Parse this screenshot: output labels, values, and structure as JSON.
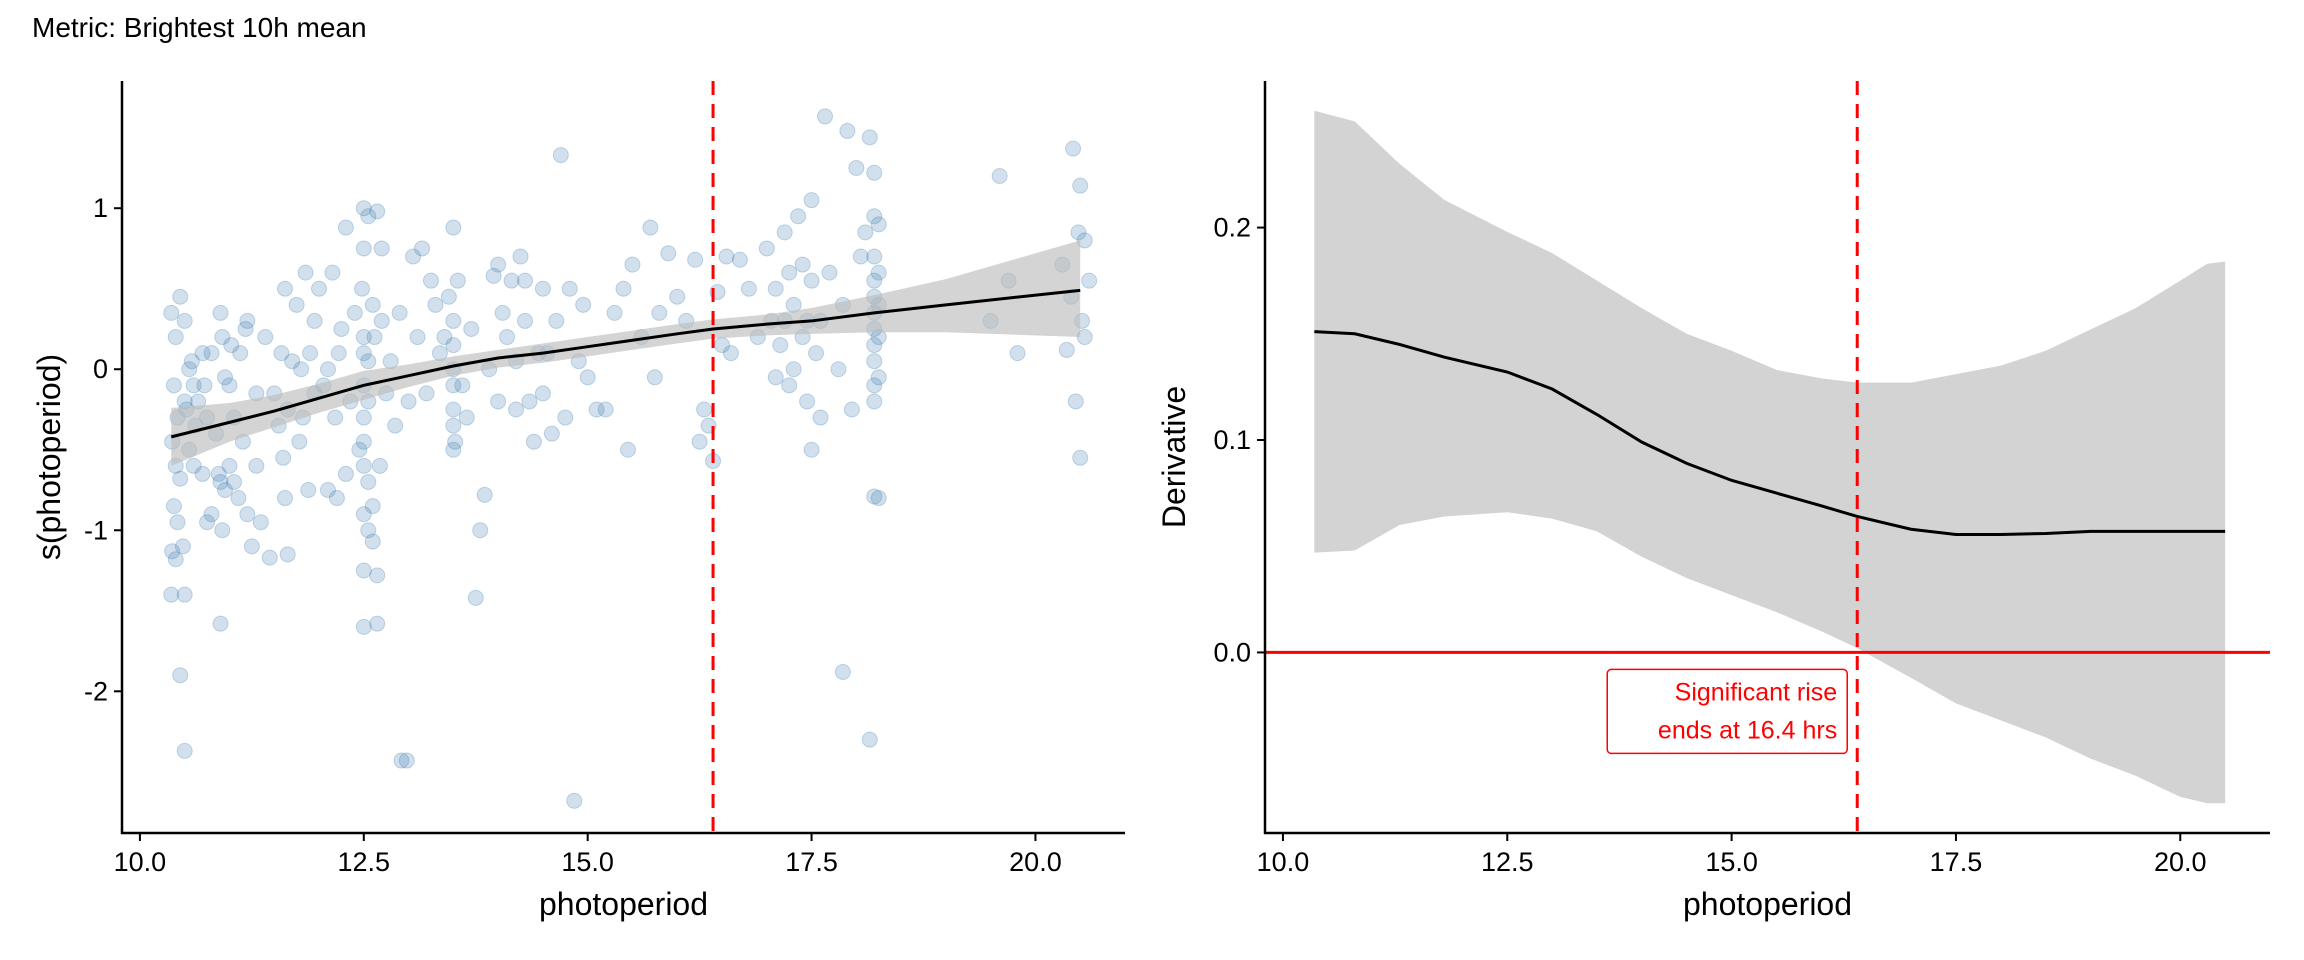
{
  "title": "Metric: Brightest 10h mean",
  "chart_data": [
    {
      "type": "scatter",
      "xlabel": "photoperiod",
      "ylabel": "s(photoperiod)",
      "xlim": [
        9.8,
        21.0
      ],
      "ylim": [
        -2.88,
        1.79
      ],
      "xticks": [
        "10.0",
        "12.5",
        "15.0",
        "17.5",
        "20.0"
      ],
      "xtick_values": [
        10,
        12.5,
        15,
        17.5,
        20
      ],
      "yticks": [
        "1",
        "0",
        "-1",
        "-2"
      ],
      "ytick_values": [
        1,
        0,
        -1,
        -2
      ],
      "vline": 16.4,
      "point_color": "#4682B4",
      "vline_color": "#FF0000",
      "smooth": {
        "x": [
          10.35,
          11.0,
          11.5,
          12.0,
          12.5,
          13.0,
          13.5,
          14.0,
          14.5,
          15.0,
          15.5,
          16.0,
          16.4,
          17.0,
          17.5,
          18.2,
          19.0,
          20.5
        ],
        "y": [
          -0.42,
          -0.33,
          -0.26,
          -0.18,
          -0.1,
          -0.04,
          0.02,
          0.07,
          0.1,
          0.14,
          0.18,
          0.22,
          0.25,
          0.28,
          0.3,
          0.35,
          0.4,
          0.49
        ],
        "lower": [
          -0.6,
          -0.45,
          -0.36,
          -0.27,
          -0.19,
          -0.11,
          -0.04,
          0.01,
          0.04,
          0.08,
          0.12,
          0.16,
          0.19,
          0.21,
          0.22,
          0.23,
          0.23,
          0.2
        ],
        "upper": [
          -0.24,
          -0.21,
          -0.16,
          -0.09,
          -0.01,
          0.03,
          0.08,
          0.12,
          0.16,
          0.2,
          0.24,
          0.28,
          0.31,
          0.34,
          0.38,
          0.46,
          0.56,
          0.8
        ]
      },
      "points": [
        [
          10.35,
          0.35
        ],
        [
          10.4,
          0.2
        ],
        [
          10.45,
          0.45
        ],
        [
          10.38,
          -0.1
        ],
        [
          10.42,
          -0.3
        ],
        [
          10.36,
          -0.45
        ],
        [
          10.4,
          -0.6
        ],
        [
          10.45,
          -0.68
        ],
        [
          10.38,
          -0.85
        ],
        [
          10.42,
          -0.95
        ],
        [
          10.36,
          -1.13
        ],
        [
          10.4,
          -1.18
        ],
        [
          10.48,
          -1.1
        ],
        [
          10.35,
          -1.4
        ],
        [
          10.5,
          -1.4
        ],
        [
          10.45,
          -1.9
        ],
        [
          10.5,
          -2.37
        ],
        [
          10.5,
          -0.2
        ],
        [
          10.55,
          0.0
        ],
        [
          10.5,
          0.3
        ],
        [
          10.55,
          -0.5
        ],
        [
          10.52,
          -0.25
        ],
        [
          10.6,
          -0.1
        ],
        [
          10.6,
          -0.6
        ],
        [
          10.58,
          0.05
        ],
        [
          10.62,
          -0.35
        ],
        [
          10.65,
          -0.2
        ],
        [
          10.7,
          -0.65
        ],
        [
          10.7,
          0.1
        ],
        [
          10.75,
          -0.3
        ],
        [
          10.72,
          -0.1
        ],
        [
          10.75,
          -0.95
        ],
        [
          10.8,
          -0.9
        ],
        [
          10.8,
          0.1
        ],
        [
          10.85,
          -0.4
        ],
        [
          10.88,
          -0.65
        ],
        [
          10.9,
          0.35
        ],
        [
          10.92,
          0.2
        ],
        [
          10.9,
          -0.7
        ],
        [
          10.92,
          -1.0
        ],
        [
          10.95,
          -0.75
        ],
        [
          10.9,
          -1.58
        ],
        [
          10.95,
          -0.05
        ],
        [
          11.0,
          -0.1
        ],
        [
          11.02,
          0.15
        ],
        [
          11.05,
          -0.3
        ],
        [
          11.0,
          -0.6
        ],
        [
          11.05,
          -0.7
        ],
        [
          11.1,
          -0.8
        ],
        [
          11.12,
          0.1
        ],
        [
          11.15,
          -0.45
        ],
        [
          11.18,
          0.25
        ],
        [
          11.2,
          0.3
        ],
        [
          11.2,
          -0.9
        ],
        [
          11.25,
          -1.1
        ],
        [
          11.3,
          -0.6
        ],
        [
          11.3,
          -0.15
        ],
        [
          11.35,
          -0.95
        ],
        [
          11.4,
          0.2
        ],
        [
          11.45,
          -1.17
        ],
        [
          11.5,
          -0.15
        ],
        [
          11.55,
          -0.35
        ],
        [
          11.58,
          0.1
        ],
        [
          11.6,
          -0.55
        ],
        [
          11.62,
          -0.8
        ],
        [
          11.65,
          -1.15
        ],
        [
          11.62,
          0.5
        ],
        [
          11.65,
          -0.25
        ],
        [
          11.7,
          0.05
        ],
        [
          11.75,
          0.4
        ],
        [
          11.78,
          -0.45
        ],
        [
          11.8,
          0.0
        ],
        [
          11.82,
          -0.3
        ],
        [
          11.85,
          0.6
        ],
        [
          11.88,
          -0.75
        ],
        [
          11.9,
          0.1
        ],
        [
          11.95,
          0.3
        ],
        [
          11.95,
          -0.15
        ],
        [
          12.0,
          0.5
        ],
        [
          12.05,
          -0.1
        ],
        [
          12.1,
          -0.75
        ],
        [
          12.1,
          0.0
        ],
        [
          12.15,
          0.6
        ],
        [
          12.18,
          -0.3
        ],
        [
          12.2,
          -0.8
        ],
        [
          12.22,
          0.1
        ],
        [
          12.25,
          0.25
        ],
        [
          12.3,
          -0.65
        ],
        [
          12.3,
          0.88
        ],
        [
          12.35,
          -0.2
        ],
        [
          12.4,
          0.35
        ],
        [
          12.45,
          -0.5
        ],
        [
          12.48,
          0.5
        ],
        [
          12.5,
          1.0
        ],
        [
          12.5,
          0.75
        ],
        [
          12.5,
          0.2
        ],
        [
          12.5,
          0.1
        ],
        [
          12.5,
          -0.1
        ],
        [
          12.5,
          -0.3
        ],
        [
          12.5,
          -0.45
        ],
        [
          12.5,
          -0.6
        ],
        [
          12.5,
          -0.9
        ],
        [
          12.5,
          -1.25
        ],
        [
          12.5,
          -1.6
        ],
        [
          12.55,
          0.95
        ],
        [
          12.55,
          0.05
        ],
        [
          12.55,
          -0.2
        ],
        [
          12.55,
          -0.7
        ],
        [
          12.55,
          -1.0
        ],
        [
          12.6,
          0.4
        ],
        [
          12.6,
          -0.85
        ],
        [
          12.6,
          -1.07
        ],
        [
          12.62,
          0.2
        ],
        [
          12.65,
          0.98
        ],
        [
          12.65,
          -1.28
        ],
        [
          12.65,
          -1.58
        ],
        [
          12.68,
          -0.6
        ],
        [
          12.7,
          0.75
        ],
        [
          12.7,
          0.3
        ],
        [
          12.75,
          -0.15
        ],
        [
          12.8,
          0.05
        ],
        [
          12.85,
          -0.35
        ],
        [
          12.9,
          0.35
        ],
        [
          12.92,
          -2.43
        ],
        [
          12.98,
          -2.43
        ],
        [
          13.0,
          -0.2
        ],
        [
          13.05,
          0.7
        ],
        [
          13.1,
          0.2
        ],
        [
          13.15,
          0.75
        ],
        [
          13.2,
          -0.15
        ],
        [
          13.25,
          0.55
        ],
        [
          13.3,
          0.4
        ],
        [
          13.35,
          0.1
        ],
        [
          13.4,
          0.2
        ],
        [
          13.45,
          0.45
        ],
        [
          13.5,
          0.88
        ],
        [
          13.5,
          0.3
        ],
        [
          13.5,
          0.15
        ],
        [
          13.5,
          0.0
        ],
        [
          13.5,
          -0.1
        ],
        [
          13.5,
          -0.25
        ],
        [
          13.5,
          -0.35
        ],
        [
          13.5,
          -0.5
        ],
        [
          13.52,
          -0.45
        ],
        [
          13.55,
          0.55
        ],
        [
          13.6,
          -0.1
        ],
        [
          13.65,
          -0.3
        ],
        [
          13.7,
          0.25
        ],
        [
          13.75,
          -1.42
        ],
        [
          13.8,
          -1.0
        ],
        [
          13.85,
          -0.78
        ],
        [
          13.9,
          0.0
        ],
        [
          13.95,
          0.58
        ],
        [
          14.0,
          0.65
        ],
        [
          14.0,
          -0.2
        ],
        [
          14.05,
          0.35
        ],
        [
          14.1,
          0.2
        ],
        [
          14.15,
          0.55
        ],
        [
          14.2,
          -0.25
        ],
        [
          14.2,
          0.05
        ],
        [
          14.25,
          0.7
        ],
        [
          14.3,
          0.3
        ],
        [
          14.3,
          0.55
        ],
        [
          14.35,
          -0.2
        ],
        [
          14.4,
          -0.45
        ],
        [
          14.45,
          0.1
        ],
        [
          14.5,
          0.5
        ],
        [
          14.5,
          -0.15
        ],
        [
          14.55,
          0.1
        ],
        [
          14.6,
          -0.4
        ],
        [
          14.65,
          0.3
        ],
        [
          14.7,
          1.33
        ],
        [
          14.75,
          -0.3
        ],
        [
          14.8,
          0.5
        ],
        [
          14.85,
          -2.68
        ],
        [
          14.9,
          0.05
        ],
        [
          14.95,
          0.4
        ],
        [
          15.0,
          -0.05
        ],
        [
          15.1,
          -0.25
        ],
        [
          15.2,
          -0.25
        ],
        [
          15.3,
          0.35
        ],
        [
          15.4,
          0.5
        ],
        [
          15.45,
          -0.5
        ],
        [
          15.5,
          0.65
        ],
        [
          15.6,
          0.2
        ],
        [
          15.7,
          0.88
        ],
        [
          15.75,
          -0.05
        ],
        [
          15.8,
          0.35
        ],
        [
          15.9,
          0.72
        ],
        [
          16.0,
          0.45
        ],
        [
          16.1,
          0.3
        ],
        [
          16.2,
          0.68
        ],
        [
          16.25,
          -0.45
        ],
        [
          16.3,
          -0.25
        ],
        [
          16.35,
          -0.35
        ],
        [
          16.4,
          -0.57
        ],
        [
          16.45,
          0.48
        ],
        [
          16.5,
          0.15
        ],
        [
          16.55,
          0.7
        ],
        [
          16.6,
          0.1
        ],
        [
          16.7,
          0.68
        ],
        [
          16.8,
          0.5
        ],
        [
          16.9,
          0.2
        ],
        [
          17.0,
          0.75
        ],
        [
          17.05,
          0.3
        ],
        [
          17.1,
          0.5
        ],
        [
          17.1,
          -0.05
        ],
        [
          17.15,
          0.15
        ],
        [
          17.2,
          0.85
        ],
        [
          17.2,
          0.3
        ],
        [
          17.25,
          0.6
        ],
        [
          17.25,
          -0.1
        ],
        [
          17.3,
          0.4
        ],
        [
          17.3,
          0.0
        ],
        [
          17.35,
          0.95
        ],
        [
          17.4,
          0.2
        ],
        [
          17.4,
          0.65
        ],
        [
          17.45,
          -0.2
        ],
        [
          17.45,
          0.3
        ],
        [
          17.5,
          1.05
        ],
        [
          17.5,
          0.55
        ],
        [
          17.5,
          -0.5
        ],
        [
          17.55,
          0.1
        ],
        [
          17.6,
          0.3
        ],
        [
          17.6,
          -0.3
        ],
        [
          17.65,
          1.57
        ],
        [
          17.7,
          0.6
        ],
        [
          17.8,
          0.0
        ],
        [
          17.85,
          -1.88
        ],
        [
          17.85,
          0.4
        ],
        [
          17.9,
          1.48
        ],
        [
          17.95,
          -0.25
        ],
        [
          18.0,
          1.25
        ],
        [
          18.05,
          0.7
        ],
        [
          18.1,
          0.85
        ],
        [
          18.15,
          1.44
        ],
        [
          18.15,
          -2.3
        ],
        [
          18.2,
          1.22
        ],
        [
          18.2,
          0.95
        ],
        [
          18.2,
          0.7
        ],
        [
          18.2,
          0.55
        ],
        [
          18.2,
          0.45
        ],
        [
          18.2,
          0.35
        ],
        [
          18.2,
          0.25
        ],
        [
          18.2,
          0.15
        ],
        [
          18.2,
          0.05
        ],
        [
          18.2,
          -0.1
        ],
        [
          18.2,
          -0.2
        ],
        [
          18.2,
          -0.79
        ],
        [
          18.25,
          0.9
        ],
        [
          18.25,
          0.6
        ],
        [
          18.25,
          0.4
        ],
        [
          18.25,
          0.2
        ],
        [
          18.25,
          -0.05
        ],
        [
          18.25,
          -0.8
        ],
        [
          19.5,
          0.3
        ],
        [
          19.6,
          1.2
        ],
        [
          19.7,
          0.55
        ],
        [
          19.8,
          0.1
        ],
        [
          20.3,
          0.65
        ],
        [
          20.35,
          0.12
        ],
        [
          20.4,
          0.45
        ],
        [
          20.42,
          1.37
        ],
        [
          20.45,
          -0.2
        ],
        [
          20.48,
          0.85
        ],
        [
          20.5,
          1.14
        ],
        [
          20.5,
          -0.55
        ],
        [
          20.52,
          0.3
        ],
        [
          20.55,
          0.8
        ],
        [
          20.55,
          0.2
        ],
        [
          20.6,
          0.55
        ]
      ]
    },
    {
      "type": "line",
      "xlabel": "photoperiod",
      "ylabel": "Derivative",
      "xlim": [
        9.8,
        21.0
      ],
      "ylim": [
        -0.085,
        0.269
      ],
      "xticks": [
        "10.0",
        "12.5",
        "15.0",
        "17.5",
        "20.0"
      ],
      "xtick_values": [
        10,
        12.5,
        15,
        17.5,
        20
      ],
      "yticks": [
        "0.2",
        "0.1",
        "0.0"
      ],
      "ytick_values": [
        0.2,
        0.1,
        0.0
      ],
      "vline": 16.4,
      "hline": 0.0,
      "x": [
        10.35,
        10.8,
        11.3,
        11.8,
        12.5,
        13.0,
        13.5,
        14.0,
        14.5,
        15.0,
        15.5,
        16.0,
        16.4,
        17.0,
        17.5,
        18.0,
        18.5,
        19.0,
        19.5,
        20.0,
        20.3,
        20.5
      ],
      "y": [
        0.151,
        0.15,
        0.145,
        0.139,
        0.132,
        0.124,
        0.112,
        0.099,
        0.089,
        0.081,
        0.075,
        0.069,
        0.064,
        0.058,
        0.0555,
        0.0555,
        0.056,
        0.057,
        0.057,
        0.057,
        0.057,
        0.057
      ],
      "upper": [
        0.255,
        0.25,
        0.23,
        0.213,
        0.198,
        0.188,
        0.175,
        0.162,
        0.15,
        0.142,
        0.133,
        0.129,
        0.127,
        0.127,
        0.131,
        0.135,
        0.142,
        0.152,
        0.162,
        0.175,
        0.183,
        0.184
      ],
      "lower": [
        0.047,
        0.048,
        0.06,
        0.064,
        0.066,
        0.063,
        0.057,
        0.045,
        0.035,
        0.027,
        0.019,
        0.01,
        0.002,
        -0.012,
        -0.024,
        -0.032,
        -0.04,
        -0.05,
        -0.058,
        -0.068,
        -0.071,
        -0.071
      ],
      "annotation": [
        "Significant rise",
        "ends at 16.4 hrs"
      ],
      "ribbon_color": "#D3D3D3",
      "accent_color": "#FF0000"
    }
  ]
}
